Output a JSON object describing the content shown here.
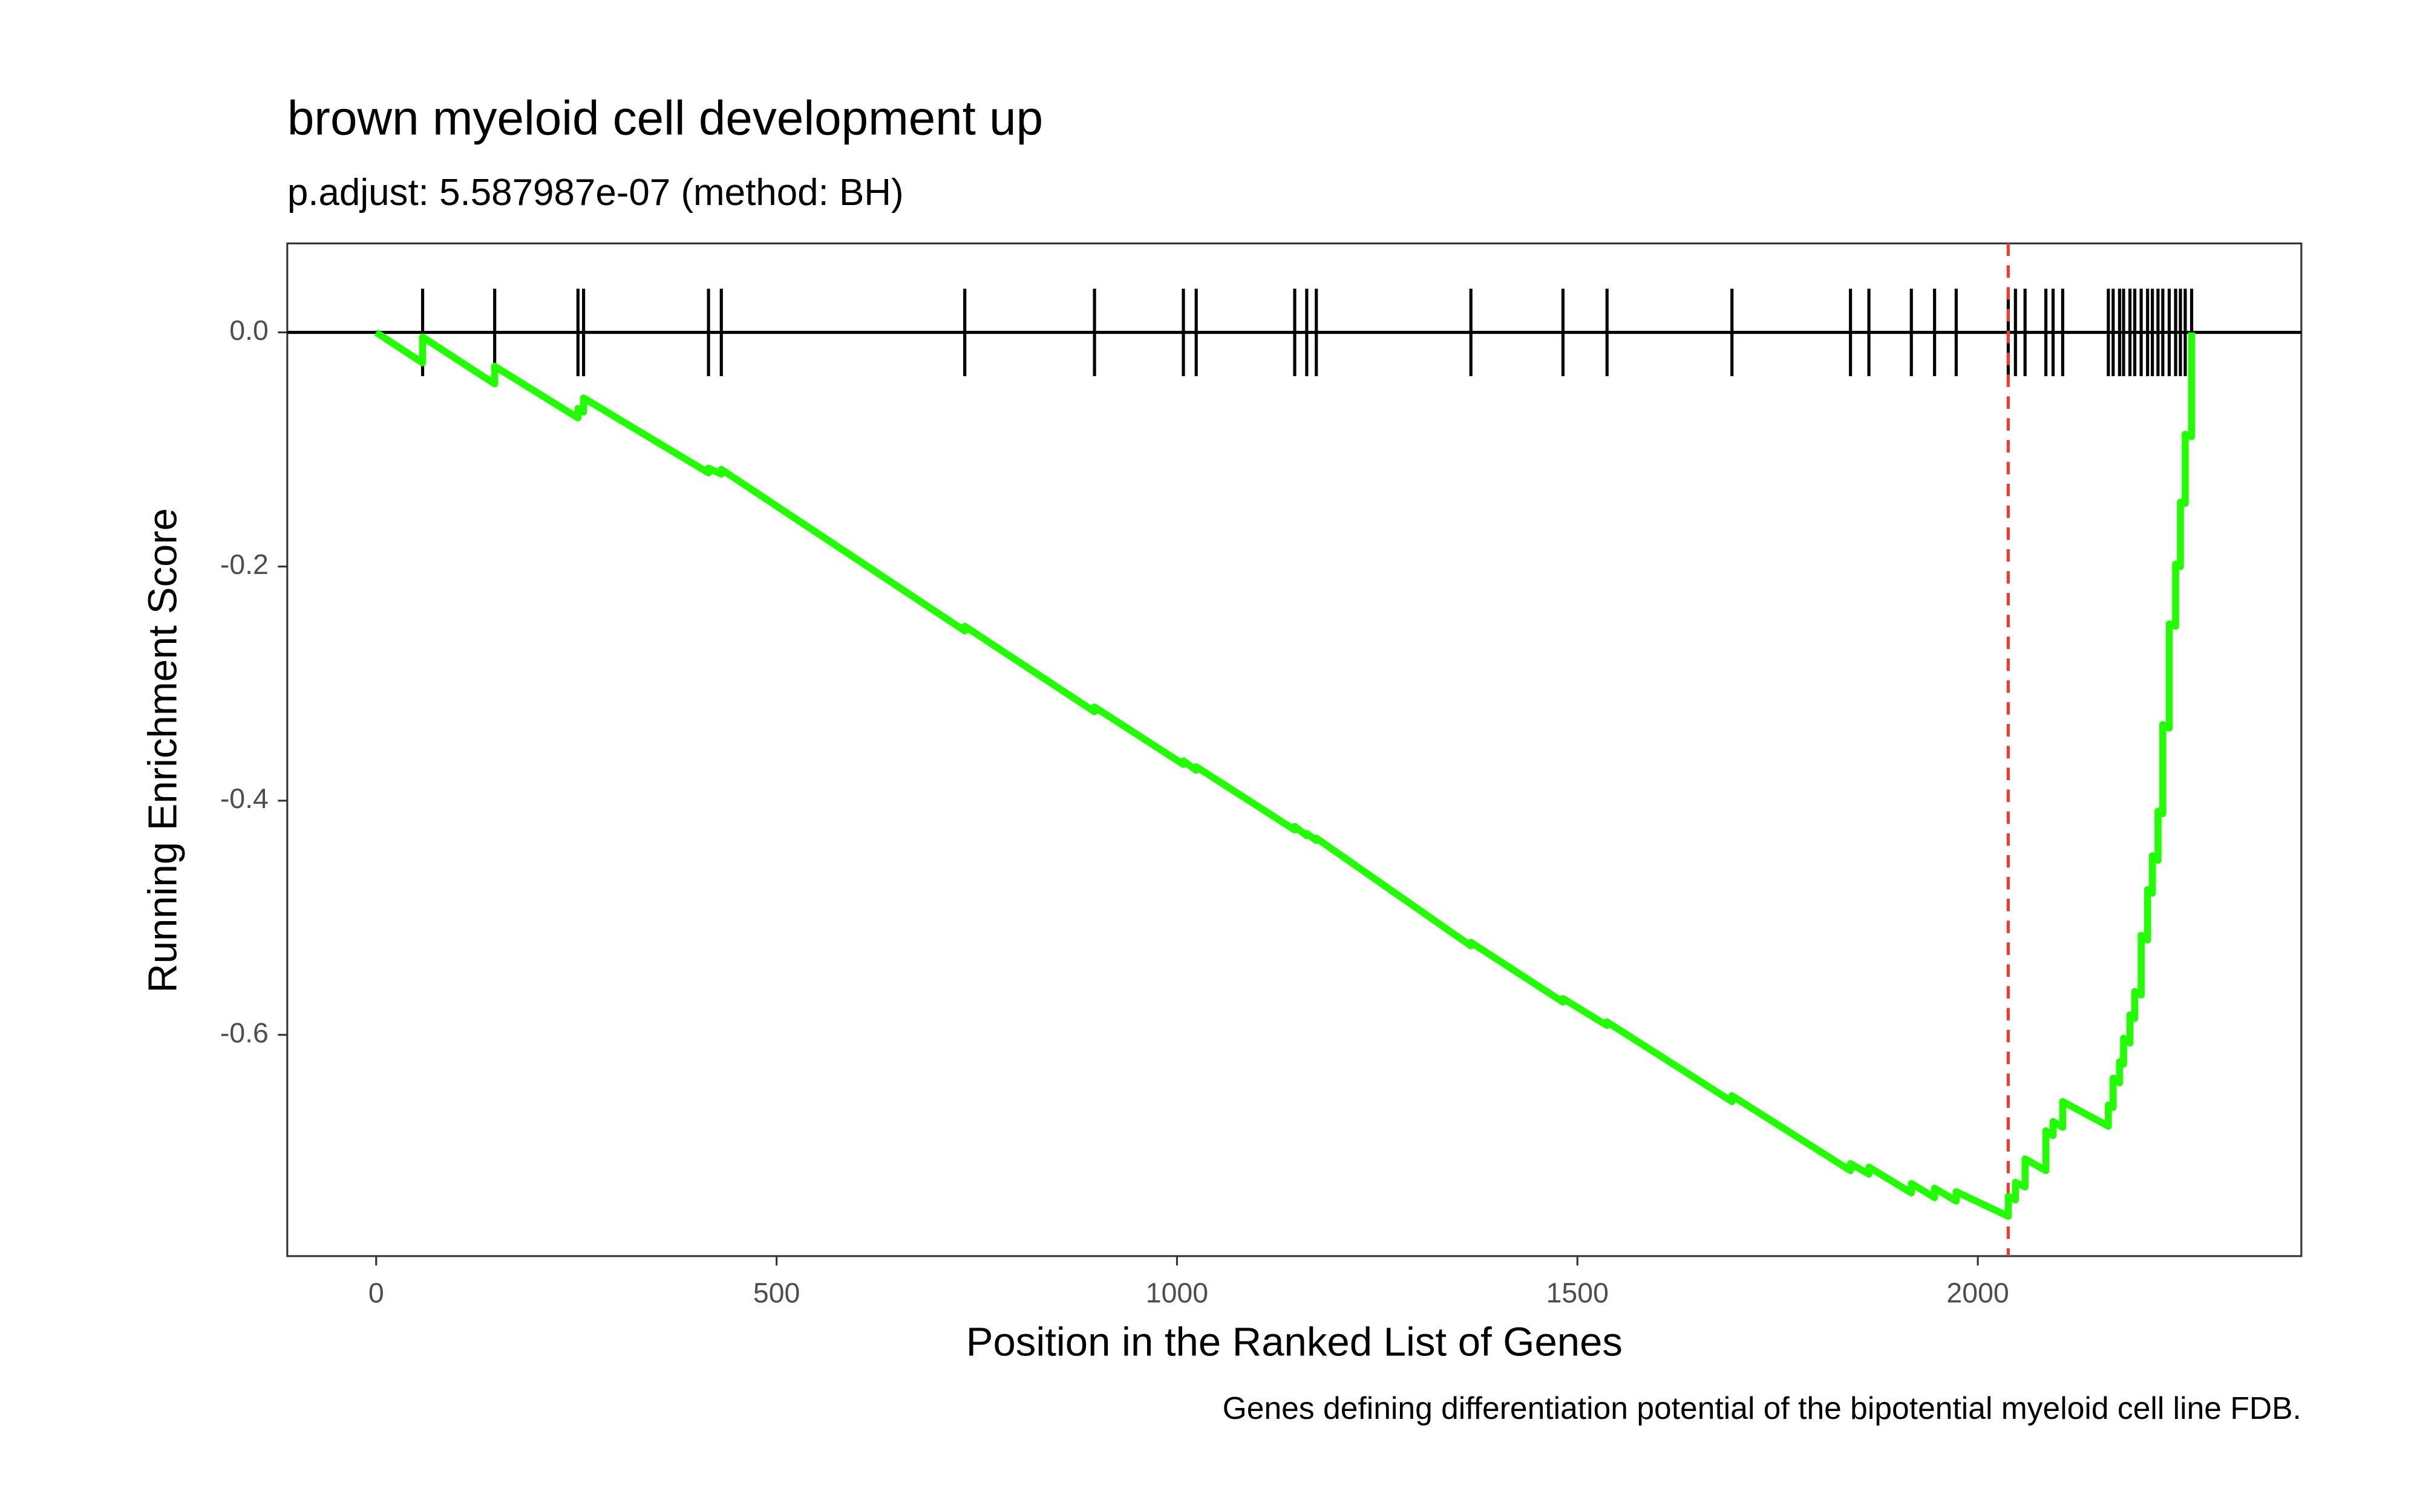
{
  "chart_data": {
    "type": "line",
    "title": "brown myeloid cell development up",
    "subtitle": "p.adjust: 5.587987e-07 (method: BH)",
    "xlabel": "Position in the Ranked List of Genes",
    "ylabel": "Running Enrichment Score",
    "caption": "Genes defining differentiation potential of the bipotential myeloid cell line FDB.",
    "color": "#22ff00",
    "x": [
      0,
      58,
      58,
      148,
      148,
      252,
      252,
      259,
      259,
      415,
      415,
      431,
      431,
      735,
      735,
      897,
      897,
      1008,
      1008,
      1024,
      1024,
      1147,
      1147,
      1162,
      1162,
      1174,
      1174,
      1367,
      1367,
      1482,
      1482,
      1537,
      1537,
      1693,
      1693,
      1841,
      1841,
      1864,
      1864,
      1917,
      1917,
      1946,
      1946,
      1973,
      1973,
      2038,
      2038,
      2047,
      2047,
      2059,
      2059,
      2085,
      2085,
      2094,
      2094,
      2106,
      2106,
      2163,
      2163,
      2169,
      2169,
      2177,
      2177,
      2182,
      2182,
      2190,
      2190,
      2196,
      2196,
      2204,
      2204,
      2212,
      2212,
      2218,
      2218,
      2225,
      2225,
      2231,
      2231,
      2239,
      2239,
      2247,
      2247,
      2253,
      2253,
      2259,
      2259,
      2267,
      2267
    ],
    "values": [
      0,
      -0.026,
      -0.004,
      -0.044,
      -0.029,
      -0.073,
      -0.065,
      -0.068,
      -0.056,
      -0.12,
      -0.116,
      -0.121,
      -0.117,
      -0.255,
      -0.251,
      -0.324,
      -0.32,
      -0.369,
      -0.366,
      -0.374,
      -0.371,
      -0.425,
      -0.422,
      -0.43,
      -0.428,
      -0.434,
      -0.432,
      -0.524,
      -0.521,
      -0.572,
      -0.569,
      -0.592,
      -0.589,
      -0.657,
      -0.652,
      -0.716,
      -0.71,
      -0.719,
      -0.713,
      -0.735,
      -0.727,
      -0.739,
      -0.731,
      -0.742,
      -0.734,
      -0.755,
      -0.738,
      -0.741,
      -0.726,
      -0.73,
      -0.706,
      -0.716,
      -0.682,
      -0.686,
      -0.674,
      -0.679,
      -0.657,
      -0.678,
      -0.66,
      -0.662,
      -0.637,
      -0.641,
      -0.623,
      -0.625,
      -0.603,
      -0.607,
      -0.583,
      -0.586,
      -0.563,
      -0.566,
      -0.515,
      -0.519,
      -0.476,
      -0.479,
      -0.447,
      -0.451,
      -0.409,
      -0.411,
      -0.335,
      -0.338,
      -0.249,
      -0.251,
      -0.198,
      -0.2,
      -0.145,
      -0.146,
      -0.087,
      -0.089,
      0
    ],
    "hits": [
      58,
      148,
      252,
      259,
      415,
      431,
      735,
      897,
      1008,
      1024,
      1147,
      1162,
      1174,
      1367,
      1482,
      1537,
      1693,
      1841,
      1864,
      1917,
      1946,
      1973,
      2038,
      2047,
      2059,
      2085,
      2094,
      2106,
      2163,
      2169,
      2177,
      2182,
      2190,
      2196,
      2204,
      2212,
      2218,
      2225,
      2231,
      2239,
      2247,
      2253,
      2259,
      2267
    ],
    "vline": 2038,
    "vline_color": "#ef3b2c",
    "xlim": [
      -111,
      2404
    ],
    "ylim": [
      -0.789,
      0.076
    ],
    "xticks": [
      0,
      500,
      1000,
      1500,
      2000
    ],
    "yticks": [
      {
        "value": 0,
        "label": "0.0"
      },
      -0.2,
      -0.4,
      -0.6
    ]
  }
}
